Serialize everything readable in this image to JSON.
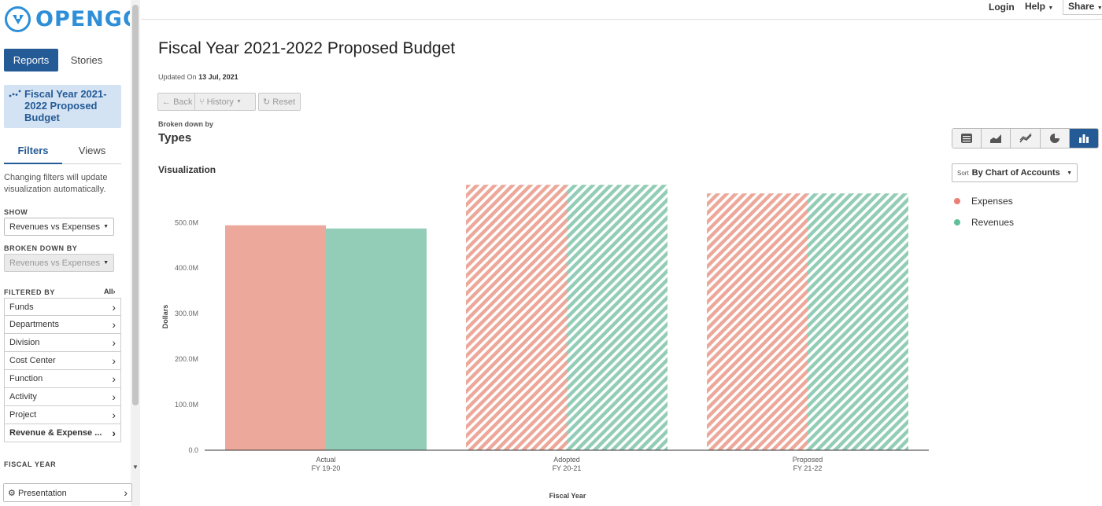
{
  "app": {
    "brand": "OPENGOV"
  },
  "sidebar": {
    "tabs": {
      "reports": "Reports",
      "stories": "Stories"
    },
    "report_title": "Fiscal Year 2021-2022 Proposed Budget",
    "sub_tabs": {
      "filters": "Filters",
      "views": "Views"
    },
    "filter_note": "Changing filters will update visualization automatically.",
    "show": {
      "label": "SHOW",
      "value": "Revenues vs Expenses"
    },
    "broken_down_by": {
      "label": "BROKEN DOWN BY",
      "value": "Revenues vs Expenses"
    },
    "filtered_by": {
      "label": "FILTERED BY",
      "all": "All"
    },
    "filters": [
      {
        "label": "Funds"
      },
      {
        "label": "Departments"
      },
      {
        "label": "Division"
      },
      {
        "label": "Cost Center"
      },
      {
        "label": "Function"
      },
      {
        "label": "Activity"
      },
      {
        "label": "Project"
      },
      {
        "label": "Revenue & Expense ..."
      }
    ],
    "fiscal_year_label": "FISCAL YEAR",
    "presentation": "Presentation"
  },
  "topbar": {
    "login": "Login",
    "help": "Help",
    "share": "Share"
  },
  "main": {
    "title": "Fiscal Year 2021-2022 Proposed Budget",
    "updated_prefix": "Updated On",
    "updated_date": "13 Jul, 2021",
    "buttons": {
      "back": "Back",
      "history": "History",
      "reset": "Reset"
    },
    "broken_down_label": "Broken down by",
    "broken_down_value": "Types",
    "viz_label": "Visualization",
    "sort": {
      "prefix": "Sort",
      "value": "By Chart of Accounts"
    },
    "chart_types": [
      "table-icon",
      "area-chart-icon",
      "line-chart-icon",
      "pie-chart-icon",
      "bar-chart-icon"
    ]
  },
  "colors": {
    "expenses": "#eca89a",
    "revenues": "#93cdb7",
    "accent": "#245a96",
    "brand": "#2e8fd8"
  },
  "chart_data": {
    "type": "bar",
    "title": "",
    "xlabel": "Fiscal Year",
    "ylabel": "Dollars",
    "ylim": [
      0,
      585000000
    ],
    "yticks": [
      {
        "value": 0,
        "label": "0.0"
      },
      {
        "value": 100000000,
        "label": "100.0M"
      },
      {
        "value": 200000000,
        "label": "200.0M"
      },
      {
        "value": 300000000,
        "label": "300.0M"
      },
      {
        "value": 400000000,
        "label": "400.0M"
      },
      {
        "value": 500000000,
        "label": "500.0M"
      }
    ],
    "categories": [
      {
        "line1": "Actual",
        "line2": "FY 19-20",
        "hatched": false
      },
      {
        "line1": "Adopted",
        "line2": "FY 20-21",
        "hatched": true
      },
      {
        "line1": "Proposed",
        "line2": "FY 21-22",
        "hatched": true
      }
    ],
    "series": [
      {
        "name": "Expenses",
        "color": "#eca89a",
        "values": [
          494000000,
          583000000,
          564000000
        ]
      },
      {
        "name": "Revenues",
        "color": "#93cdb7",
        "values": [
          487000000,
          583000000,
          564000000
        ]
      }
    ],
    "legend": "right"
  }
}
